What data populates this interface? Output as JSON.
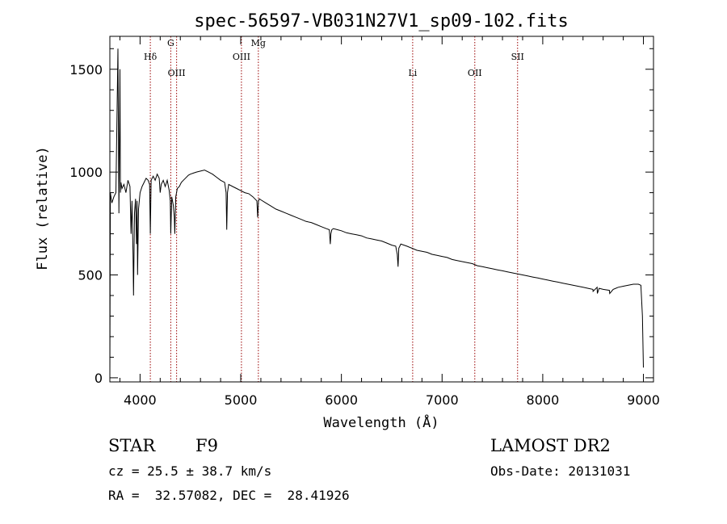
{
  "chart_data": {
    "type": "line",
    "title": "spec-56597-VB031N27V1_sp09-102.fits",
    "xlabel": "Wavelength (Å)",
    "ylabel": "Flux (relative)",
    "xlim": [
      3700,
      9100
    ],
    "ylim": [
      -20,
      1660
    ],
    "xticks": [
      4000,
      5000,
      6000,
      7000,
      8000,
      9000
    ],
    "yticks": [
      0,
      500,
      1000,
      1500
    ],
    "grid": false,
    "line_color": "#000000",
    "marker_color": "#990000",
    "spectral_lines": [
      {
        "name": "Hδ",
        "x": 4102
      },
      {
        "name": "G",
        "x": 4305
      },
      {
        "name": "OIII",
        "x": 4363
      },
      {
        "name": "OIII",
        "x": 5007
      },
      {
        "name": "Mg",
        "x": 5175
      },
      {
        "name": "Li",
        "x": 6708
      },
      {
        "name": "OII",
        "x": 7325
      },
      {
        "name": "SII",
        "x": 7750
      }
    ],
    "series": [
      {
        "x": [
          3700,
          3705,
          3720,
          3740,
          3760,
          3780,
          3790,
          3800,
          3805,
          3810,
          3820,
          3840,
          3860,
          3880,
          3900,
          3910,
          3920,
          3930,
          3935,
          3945,
          3955,
          3965,
          3970,
          3975,
          3985,
          4000,
          4020,
          4040,
          4060,
          4080,
          4095,
          4102,
          4110,
          4130,
          4150,
          4170,
          4190,
          4200,
          4210,
          4230,
          4250,
          4270,
          4290,
          4300,
          4305,
          4315,
          4330,
          4340,
          4345,
          4355,
          4370,
          4390,
          4410,
          4430,
          4450,
          4480,
          4500,
          4530,
          4560,
          4600,
          4640,
          4680,
          4720,
          4760,
          4800,
          4840,
          4855,
          4861,
          4868,
          4880,
          4920,
          4960,
          5000,
          5040,
          5080,
          5120,
          5160,
          5168,
          5172,
          5176,
          5185,
          5200,
          5250,
          5300,
          5350,
          5400,
          5450,
          5500,
          5550,
          5600,
          5650,
          5700,
          5750,
          5800,
          5850,
          5880,
          5890,
          5895,
          5905,
          5920,
          5960,
          6000,
          6050,
          6100,
          6150,
          6200,
          6250,
          6300,
          6350,
          6400,
          6450,
          6500,
          6540,
          6555,
          6563,
          6570,
          6590,
          6650,
          6700,
          6750,
          6800,
          6850,
          6900,
          6950,
          7000,
          7050,
          7100,
          7150,
          7200,
          7250,
          7300,
          7350,
          7400,
          7450,
          7500,
          7550,
          7600,
          7650,
          7700,
          7750,
          7800,
          7850,
          7900,
          7950,
          8000,
          8050,
          8100,
          8150,
          8200,
          8250,
          8300,
          8350,
          8400,
          8450,
          8498,
          8500,
          8540,
          8542,
          8560,
          8600,
          8662,
          8665,
          8700,
          8750,
          8800,
          8850,
          8900,
          8950,
          8975,
          8990,
          9000
        ],
        "y": [
          0,
          900,
          850,
          880,
          900,
          1600,
          800,
          1500,
          900,
          950,
          920,
          940,
          900,
          960,
          930,
          700,
          860,
          600,
          400,
          800,
          870,
          650,
          860,
          500,
          820,
          900,
          930,
          950,
          970,
          960,
          940,
          700,
          960,
          980,
          960,
          990,
          970,
          900,
          940,
          960,
          930,
          960,
          910,
          860,
          700,
          880,
          840,
          780,
          700,
          880,
          920,
          930,
          950,
          960,
          970,
          985,
          990,
          995,
          1000,
          1005,
          1010,
          1000,
          990,
          975,
          960,
          950,
          900,
          720,
          900,
          940,
          930,
          920,
          910,
          900,
          895,
          880,
          860,
          780,
          820,
          860,
          870,
          865,
          850,
          835,
          820,
          810,
          800,
          790,
          780,
          770,
          760,
          755,
          745,
          735,
          725,
          720,
          650,
          700,
          720,
          725,
          720,
          715,
          705,
          700,
          695,
          690,
          680,
          675,
          670,
          665,
          655,
          645,
          640,
          600,
          540,
          630,
          650,
          640,
          630,
          620,
          615,
          610,
          600,
          595,
          590,
          585,
          575,
          570,
          565,
          560,
          555,
          545,
          540,
          535,
          530,
          525,
          520,
          515,
          510,
          505,
          500,
          495,
          490,
          485,
          480,
          475,
          470,
          465,
          460,
          455,
          450,
          445,
          440,
          435,
          430,
          420,
          440,
          410,
          435,
          430,
          425,
          410,
          430,
          440,
          445,
          450,
          455,
          455,
          450,
          300,
          50
        ]
      }
    ]
  },
  "info": {
    "object_class": "STAR",
    "subclass": "F9",
    "survey": "LAMOST DR2",
    "redshift": "cz = 25.5 ± 38.7 km/s",
    "obs_date": "Obs-Date: 20131031",
    "coords": "RA =  32.57082, DEC =  28.41926"
  }
}
